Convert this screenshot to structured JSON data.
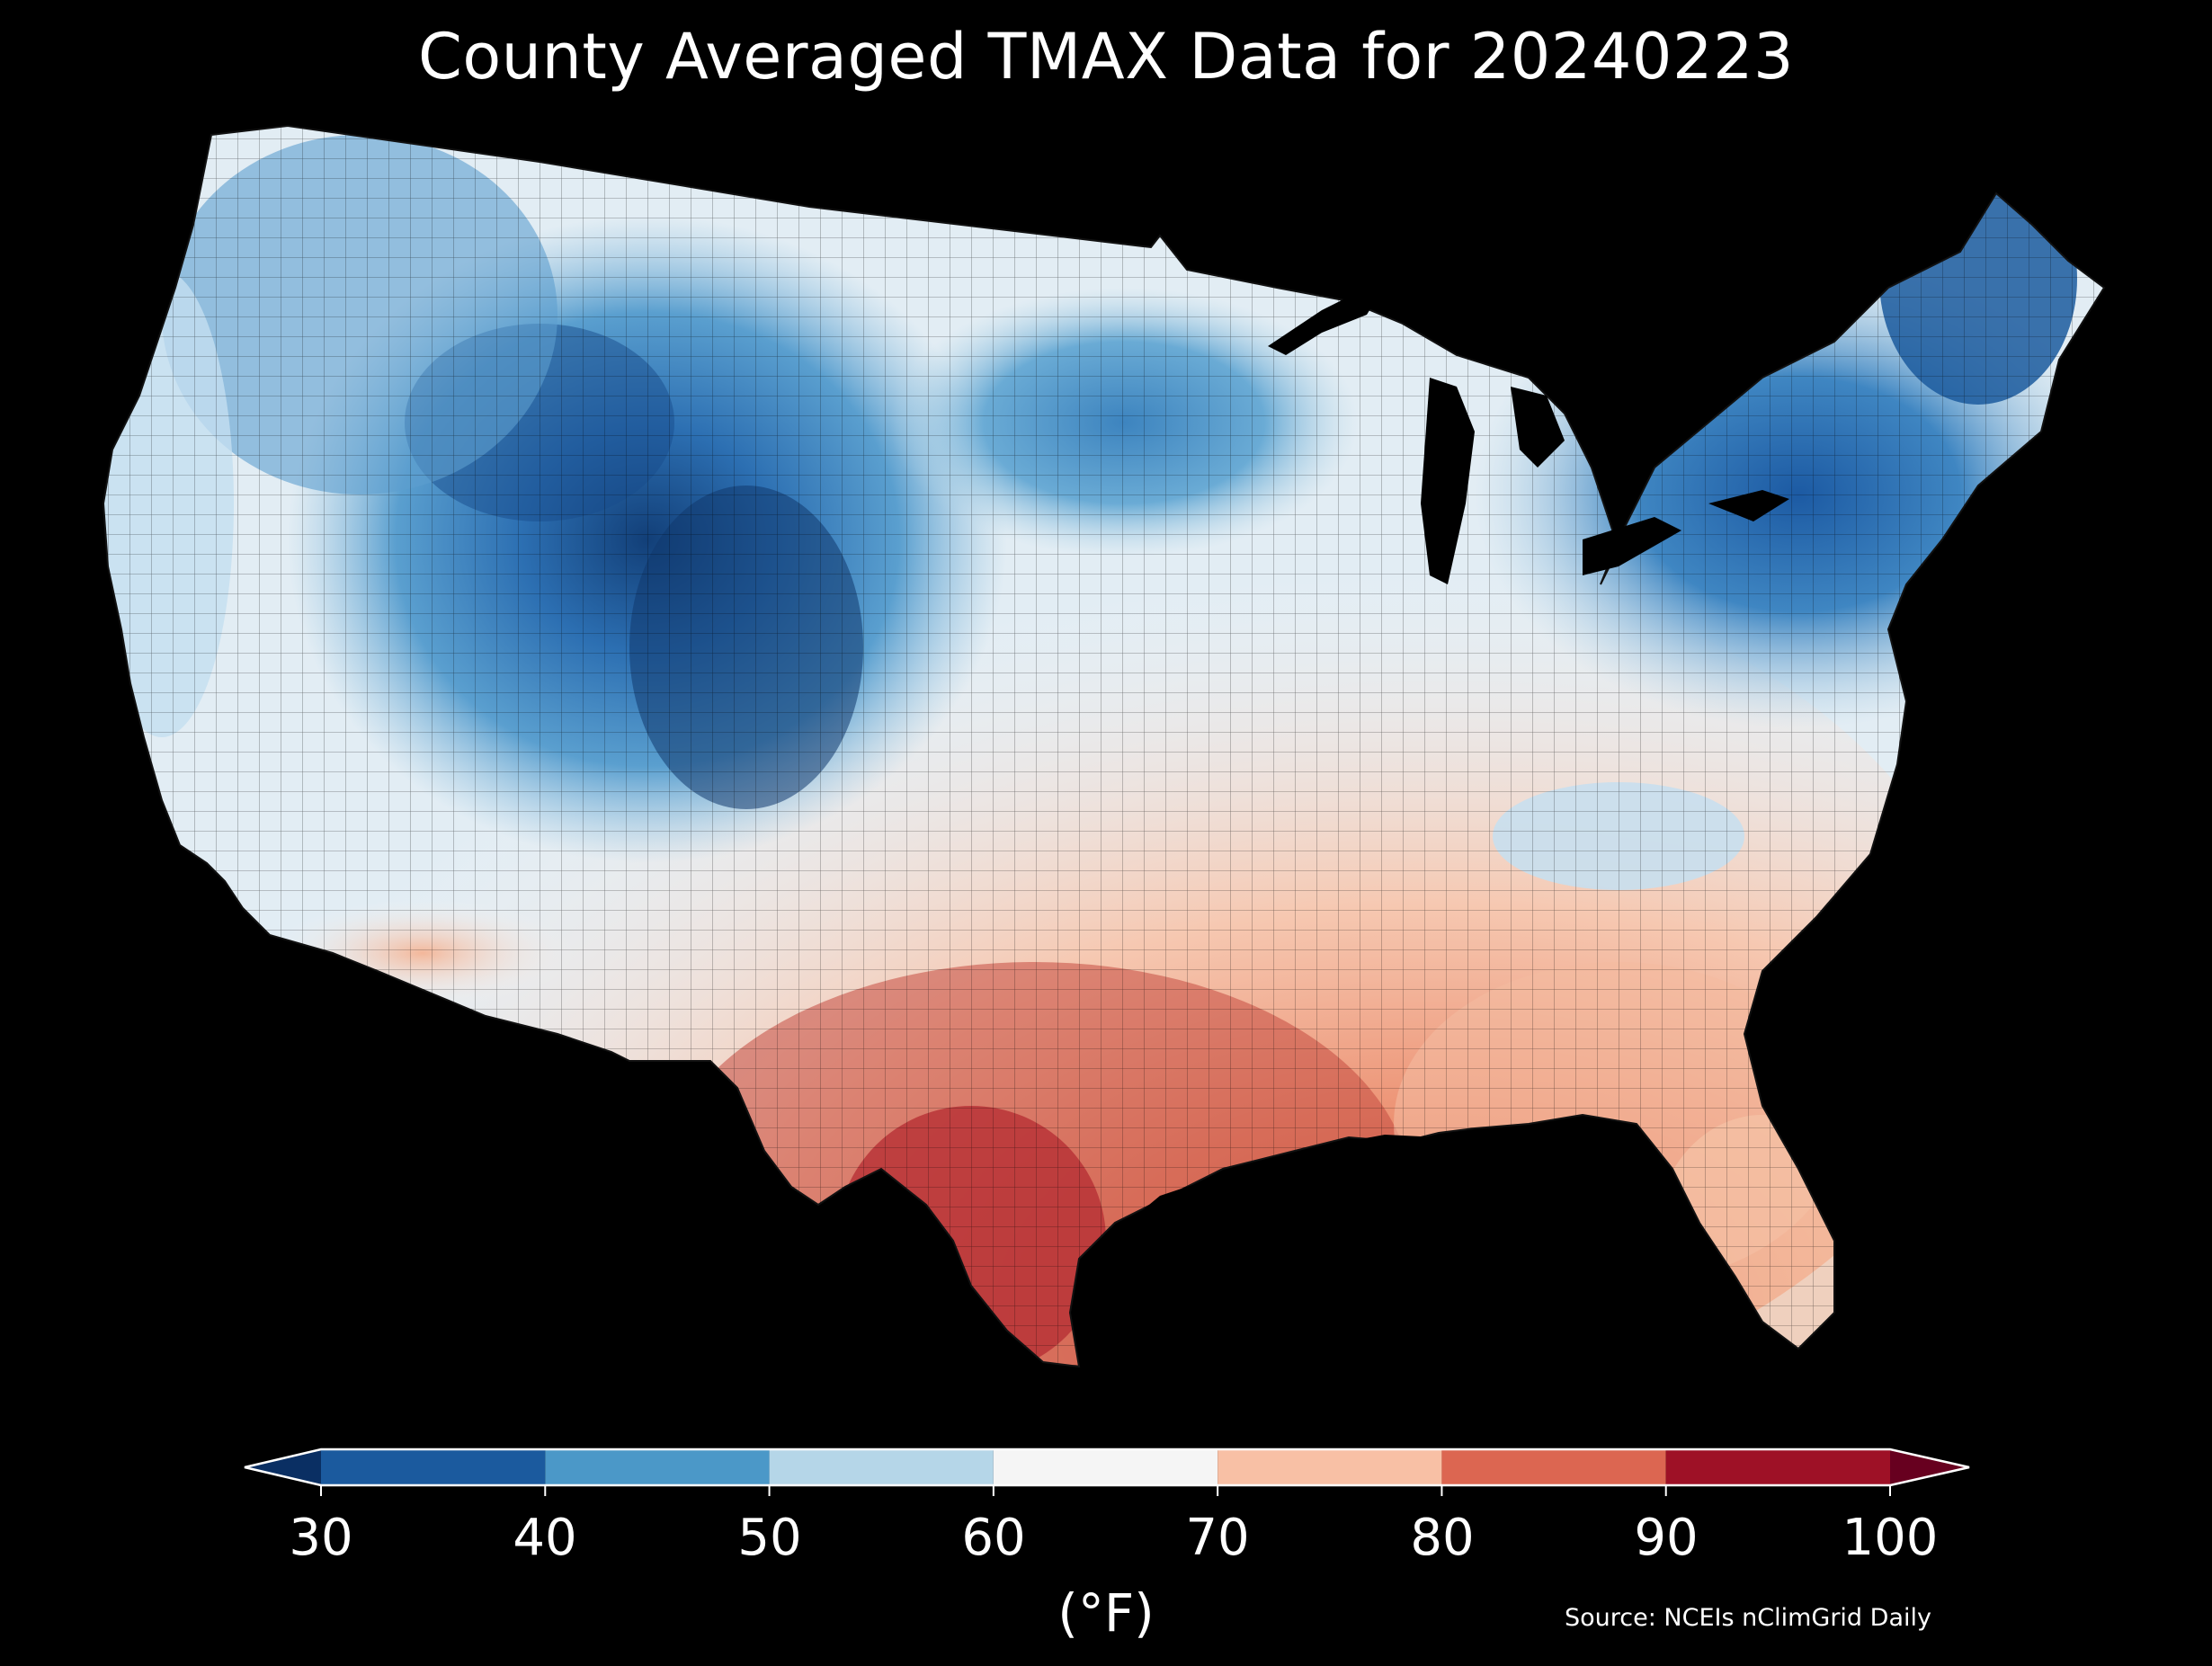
{
  "title": "County Averaged TMAX Data for 20240223",
  "source": "Source: NCEIs nClimGrid Daily",
  "colorbar": {
    "unit": "(°F)",
    "ticks": [
      "30",
      "40",
      "50",
      "60",
      "70",
      "80",
      "90",
      "100"
    ],
    "bins": [
      {
        "range": [
          30,
          40
        ],
        "color": "#1b5a9e"
      },
      {
        "range": [
          40,
          50
        ],
        "color": "#4b98c8"
      },
      {
        "range": [
          50,
          60
        ],
        "color": "#b5d6e8"
      },
      {
        "range": [
          60,
          70
        ],
        "color": "#f5f5f5"
      },
      {
        "range": [
          70,
          80
        ],
        "color": "#f8c0a5"
      },
      {
        "range": [
          80,
          90
        ],
        "color": "#dc6651"
      },
      {
        "range": [
          90,
          100
        ],
        "color": "#9e1126"
      }
    ],
    "under_color": "#0a2f63",
    "over_color": "#67001f"
  },
  "map": {
    "region": "Contiguous United States",
    "background": "#000000",
    "land_base_color": "#d6e6f1"
  }
}
